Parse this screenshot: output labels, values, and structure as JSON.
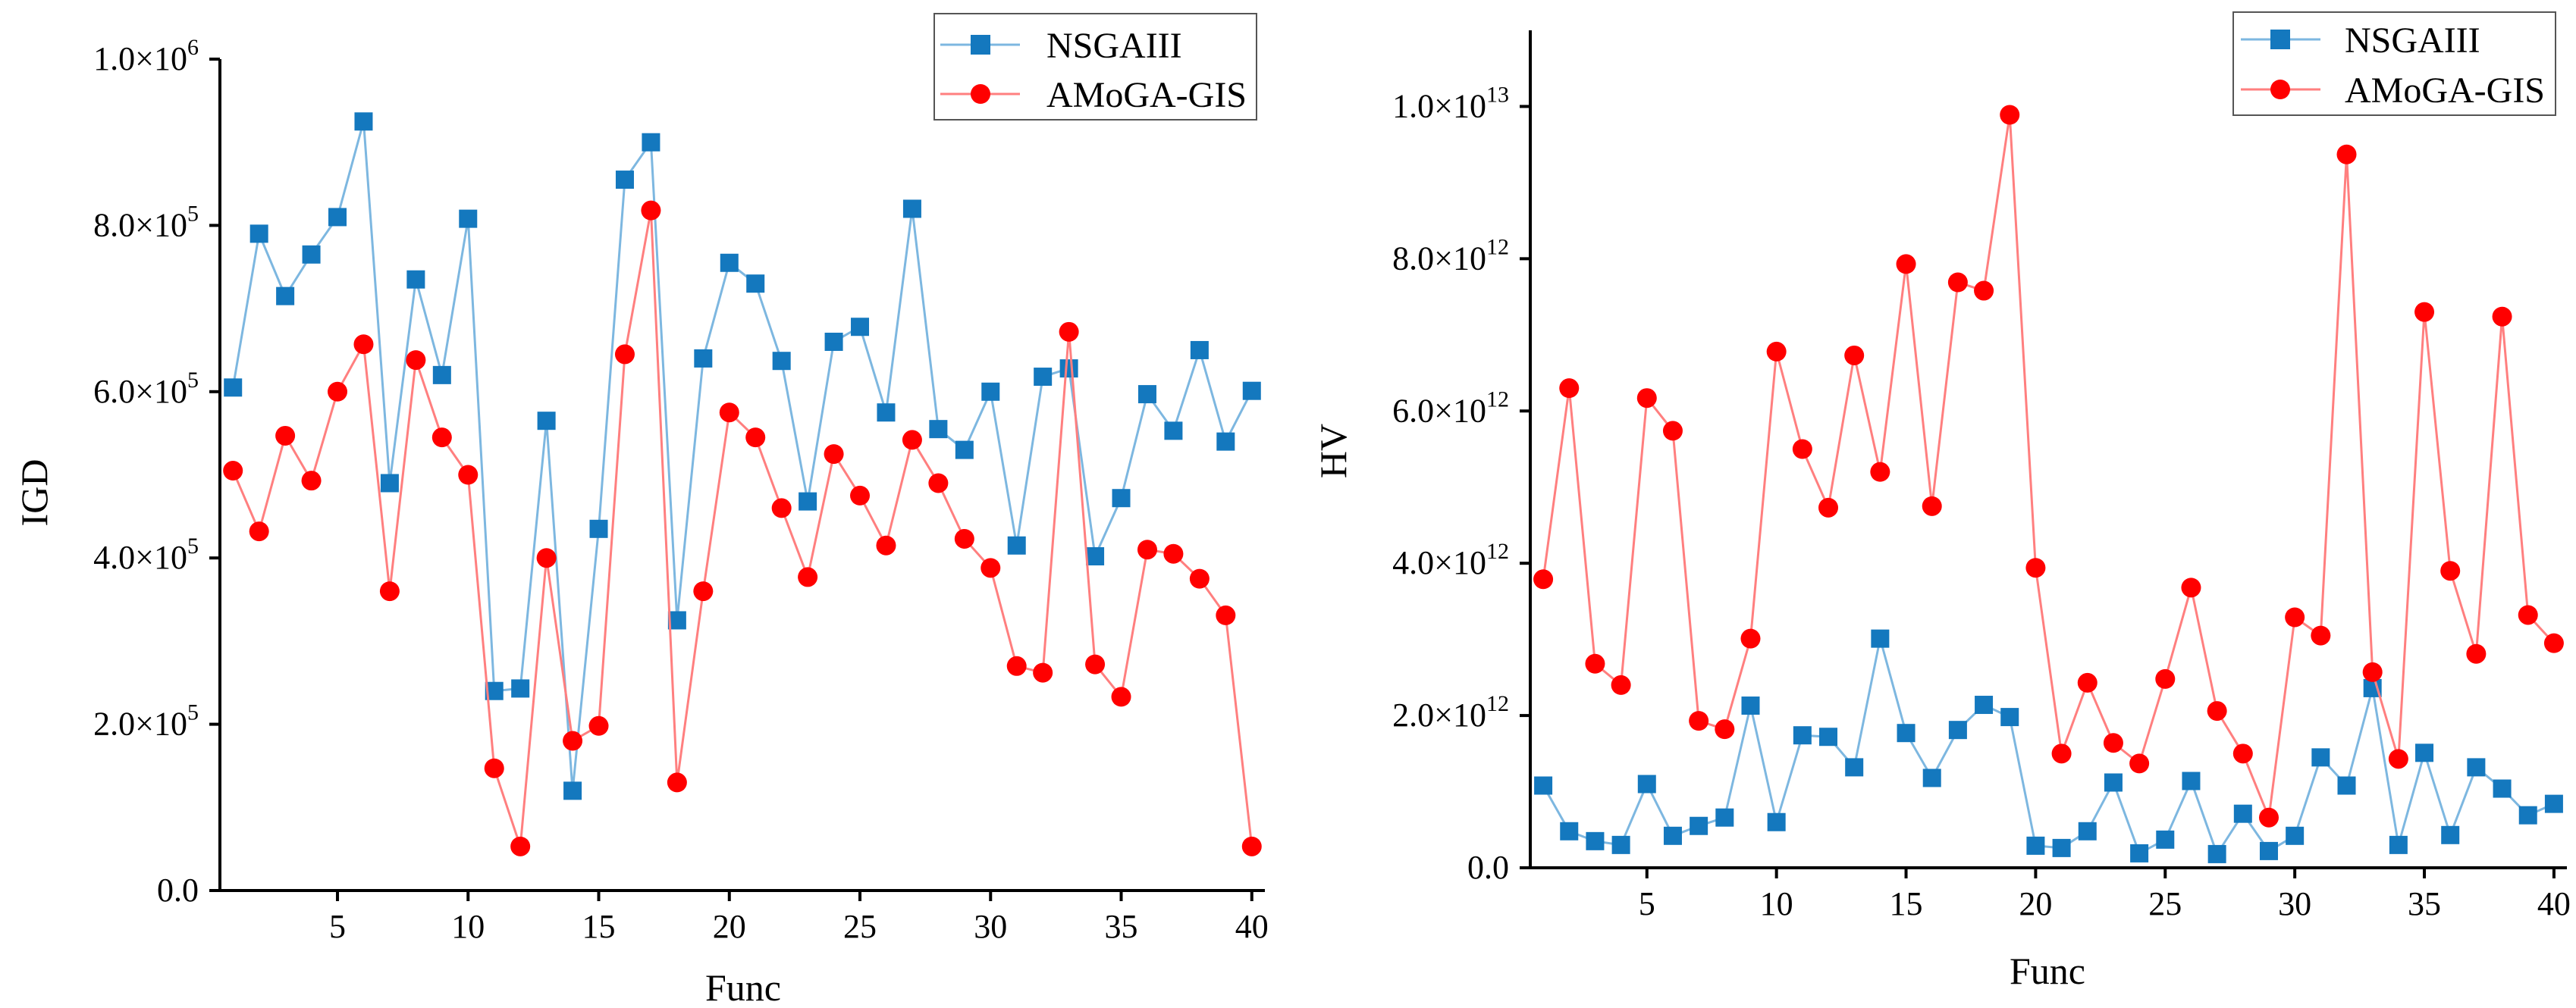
{
  "chart_data": [
    {
      "type": "line",
      "xlabel": "Func",
      "ylabel": "IGD",
      "xlim": [
        0.5,
        40.5
      ],
      "ylim": [
        0,
        1000000
      ],
      "x_ticks": [
        5,
        10,
        15,
        20,
        25,
        30,
        35,
        40
      ],
      "y_ticks": [
        {
          "value": 0,
          "mant": "0.0",
          "exp": ""
        },
        {
          "value": 200000,
          "mant": "2.0×10",
          "exp": "5"
        },
        {
          "value": 400000,
          "mant": "4.0×10",
          "exp": "5"
        },
        {
          "value": 600000,
          "mant": "6.0×10",
          "exp": "5"
        },
        {
          "value": 800000,
          "mant": "8.0×10",
          "exp": "5"
        },
        {
          "value": 1000000,
          "mant": "1.0×10",
          "exp": "6"
        }
      ],
      "legend": {
        "position": "top-right",
        "labels": [
          "NSGAIII",
          "AMoGA-GIS"
        ]
      },
      "x": [
        1,
        2,
        3,
        4,
        5,
        6,
        7,
        8,
        9,
        10,
        11,
        12,
        13,
        14,
        15,
        16,
        17,
        18,
        19,
        20,
        21,
        22,
        23,
        24,
        25,
        26,
        27,
        28,
        29,
        30,
        31,
        32,
        33,
        34,
        35,
        36,
        37,
        38,
        39,
        40
      ],
      "series": [
        {
          "name": "NSGAIII",
          "marker": "square",
          "color": "#1478BE",
          "line_color": "#7DB7E0",
          "values": [
            605000,
            790000,
            715000,
            765000,
            810000,
            925000,
            490000,
            735000,
            620000,
            808000,
            240000,
            243000,
            565000,
            120000,
            435000,
            855000,
            900000,
            325000,
            640000,
            755000,
            730000,
            637000,
            468000,
            660000,
            678000,
            575000,
            820000,
            555000,
            530000,
            600000,
            415000,
            618000,
            628000,
            402000,
            472000,
            597000,
            553000,
            650000,
            540000,
            601000
          ]
        },
        {
          "name": "AMoGA-GIS",
          "marker": "circle",
          "color": "#FF0000",
          "line_color": "#FF7F7F",
          "values": [
            505000,
            432000,
            547000,
            493000,
            600000,
            657000,
            360000,
            638000,
            545000,
            500000,
            147000,
            53000,
            400000,
            180000,
            198000,
            645000,
            818000,
            130000,
            360000,
            575000,
            545000,
            460000,
            377000,
            525000,
            475000,
            415000,
            542000,
            490000,
            423000,
            388000,
            270000,
            262000,
            672000,
            272000,
            233000,
            410000,
            405000,
            375000,
            331000,
            53000
          ]
        }
      ]
    },
    {
      "type": "line",
      "xlabel": "Func",
      "ylabel": "HV",
      "xlim": [
        0.5,
        40.5
      ],
      "ylim": [
        0,
        11000000000000
      ],
      "x_ticks": [
        5,
        10,
        15,
        20,
        25,
        30,
        35,
        40
      ],
      "y_ticks": [
        {
          "value": 0,
          "mant": "0.0",
          "exp": ""
        },
        {
          "value": 2000000000000,
          "mant": "2.0×10",
          "exp": "12"
        },
        {
          "value": 4000000000000,
          "mant": "4.0×10",
          "exp": "12"
        },
        {
          "value": 6000000000000,
          "mant": "6.0×10",
          "exp": "12"
        },
        {
          "value": 8000000000000,
          "mant": "8.0×10",
          "exp": "12"
        },
        {
          "value": 10000000000000,
          "mant": "1.0×10",
          "exp": "13"
        }
      ],
      "legend": {
        "position": "top-right",
        "labels": [
          "NSGAIII",
          "AMoGA-GIS"
        ]
      },
      "x": [
        1,
        2,
        3,
        4,
        5,
        6,
        7,
        8,
        9,
        10,
        11,
        12,
        13,
        14,
        15,
        16,
        17,
        18,
        19,
        20,
        21,
        22,
        23,
        24,
        25,
        26,
        27,
        28,
        29,
        30,
        31,
        32,
        33,
        34,
        35,
        36,
        37,
        38,
        39,
        40
      ],
      "series": [
        {
          "name": "NSGAIII",
          "marker": "square",
          "color": "#1478BE",
          "line_color": "#7DB7E0",
          "values": [
            1080000000000,
            480000000000,
            350000000000,
            300000000000,
            1100000000000,
            420000000000,
            550000000000,
            660000000000,
            2130000000000,
            600000000000,
            1740000000000,
            1720000000000,
            1320000000000,
            3010000000000,
            1770000000000,
            1180000000000,
            1810000000000,
            2140000000000,
            1980000000000,
            290000000000,
            260000000000,
            480000000000,
            1120000000000,
            190000000000,
            370000000000,
            1140000000000,
            180000000000,
            710000000000,
            220000000000,
            420000000000,
            1450000000000,
            1080000000000,
            2360000000000,
            300000000000,
            1510000000000,
            430000000000,
            1320000000000,
            1040000000000,
            690000000000,
            840000000000
          ]
        },
        {
          "name": "AMoGA-GIS",
          "marker": "circle",
          "color": "#FF0000",
          "line_color": "#FF7F7F",
          "values": [
            3790000000000,
            6300000000000,
            2680000000000,
            2400000000000,
            6170000000000,
            5740000000000,
            1930000000000,
            1820000000000,
            3010000000000,
            6780000000000,
            5500000000000,
            4730000000000,
            6730000000000,
            5200000000000,
            7930000000000,
            4750000000000,
            7690000000000,
            7580000000000,
            9890000000000,
            3940000000000,
            1500000000000,
            2430000000000,
            1640000000000,
            1370000000000,
            2480000000000,
            3680000000000,
            2060000000000,
            1500000000000,
            660000000000,
            3290000000000,
            3050000000000,
            9370000000000,
            2570000000000,
            1430000000000,
            7300000000000,
            3900000000000,
            2810000000000,
            7240000000000,
            3320000000000,
            2950000000000
          ]
        }
      ]
    }
  ]
}
